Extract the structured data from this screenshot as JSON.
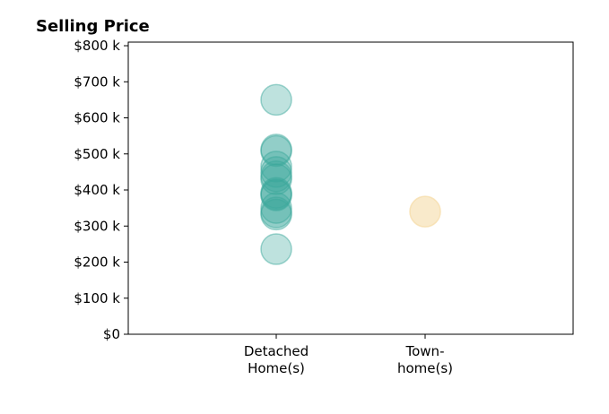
{
  "chart_data": {
    "type": "scatter",
    "title": "Selling Price",
    "xlabel": "",
    "ylabel": "",
    "categories": [
      [
        "Detached",
        "Home(s)"
      ],
      [
        "Town-",
        "home(s)"
      ]
    ],
    "ylim": [
      0,
      810
    ],
    "yticks": [
      0,
      100,
      200,
      300,
      400,
      500,
      600,
      700,
      800
    ],
    "ytick_labels": [
      "$0",
      "$100 k",
      "$200 k",
      "$300 k",
      "$400 k",
      "$500 k",
      "$600 k",
      "$700 k",
      "$800 k"
    ],
    "grid": false,
    "legend": "none",
    "series": [
      {
        "category_index": 0,
        "color": "#3aa79a",
        "opacity": 0.33,
        "values": [
          650,
          512,
          508,
          465,
          450,
          438,
          430,
          392,
          388,
          385,
          350,
          338,
          332,
          236
        ]
      },
      {
        "category_index": 1,
        "color": "#f5dca8",
        "opacity": 0.6,
        "values": [
          340
        ]
      }
    ]
  }
}
